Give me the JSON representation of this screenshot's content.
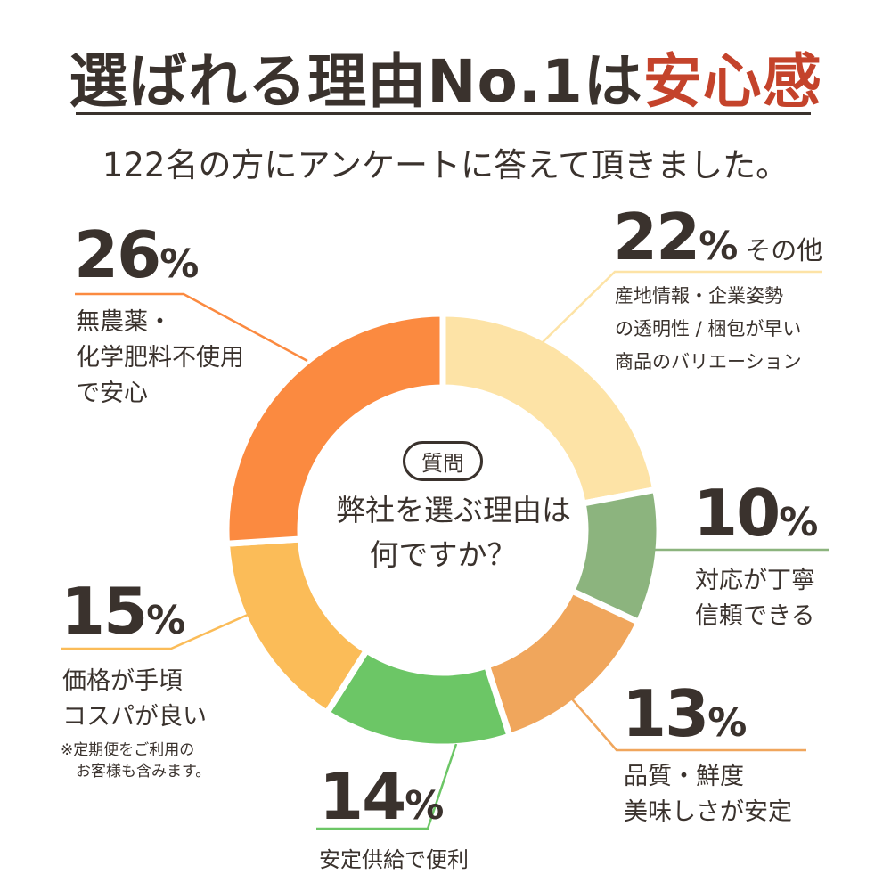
{
  "header": {
    "title_main": "選ばれる理由No.1は",
    "title_accent": "安心感",
    "subtitle": "122名の方にアンケートに答えて頂きました。",
    "accent_color": "#c4432b"
  },
  "center": {
    "badge": "質問",
    "question_line1": "弊社を選ぶ理由は",
    "question_line2": "何ですか？"
  },
  "chart_data": {
    "type": "pie",
    "donut": true,
    "start": "top",
    "direction": "clockwise",
    "unit": "%",
    "slices": [
      {
        "value": 22,
        "label_lines": [
          "産地情報・企業姿勢",
          "の透明性 / 梱包が早い",
          "商品のバリエーション"
        ],
        "tag": "その他",
        "color": "#fde3a6"
      },
      {
        "value": 10,
        "label_lines": [
          "対応が丁寧",
          "信頼できる"
        ],
        "color": "#8cb47e"
      },
      {
        "value": 13,
        "label_lines": [
          "品質・鮮度",
          "美味しさが安定"
        ],
        "color": "#f0a65c"
      },
      {
        "value": 14,
        "label_lines": [
          "安定供給で便利"
        ],
        "color": "#6cc666"
      },
      {
        "value": 15,
        "label_lines": [
          "価格が手頃",
          "コスパが良い"
        ],
        "note_lines": [
          "※定期便をご利用の",
          "お客様も含みます。"
        ],
        "color": "#fbbc58"
      },
      {
        "value": 26,
        "label_lines": [
          "無農薬・",
          "化学肥料不使用",
          "で安心"
        ],
        "color": "#fb8a40"
      }
    ]
  }
}
